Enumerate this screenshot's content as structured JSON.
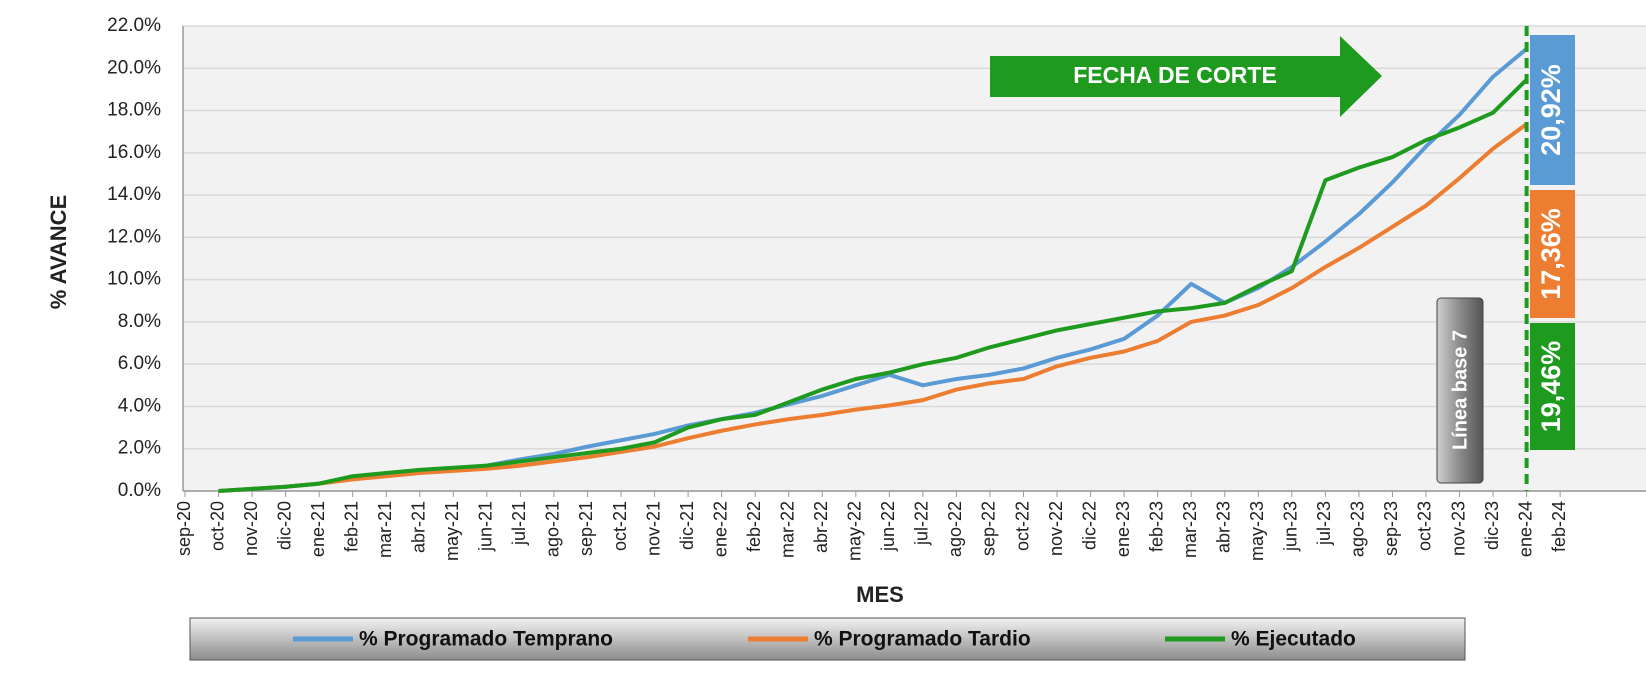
{
  "chart_data": {
    "type": "line",
    "y_label": "% AVANCE",
    "x_label": "MES",
    "annotations": [
      "FECHA DE CORTE",
      "Línea base 7"
    ],
    "categories": [
      "sep-20",
      "oct-20",
      "nov-20",
      "dic-20",
      "ene-21",
      "feb-21",
      "mar-21",
      "abr-21",
      "may-21",
      "jun-21",
      "jul-21",
      "ago-21",
      "sep-21",
      "oct-21",
      "nov-21",
      "dic-21",
      "ene-22",
      "feb-22",
      "mar-22",
      "abr-22",
      "may-22",
      "jun-22",
      "jul-22",
      "ago-22",
      "sep-22",
      "oct-22",
      "nov-22",
      "dic-22",
      "ene-23",
      "feb-23",
      "mar-23",
      "abr-23",
      "may-23",
      "jun-23",
      "jul-23",
      "ago-23",
      "sep-23",
      "oct-23",
      "nov-23",
      "dic-23",
      "ene-24",
      "feb-24"
    ],
    "series": [
      {
        "name": "% Programado Temprano",
        "color": "#5b9bd5",
        "end_label": "20,92%",
        "values": [
          null,
          0.0,
          0.1,
          0.2,
          0.35,
          0.6,
          0.75,
          0.9,
          1.05,
          1.2,
          1.5,
          1.75,
          2.1,
          2.4,
          2.7,
          3.1,
          3.4,
          3.7,
          4.1,
          4.5,
          5.0,
          5.5,
          5.0,
          5.3,
          5.5,
          5.8,
          6.3,
          6.7,
          7.2,
          8.3,
          9.8,
          8.9,
          9.6,
          10.6,
          11.8,
          13.1,
          14.6,
          16.3,
          17.8,
          19.6,
          20.92,
          null
        ]
      },
      {
        "name": "% Programado Tardio",
        "color": "#ed7d31",
        "end_label": "17,36%",
        "values": [
          null,
          0.0,
          0.1,
          0.2,
          0.35,
          0.55,
          0.7,
          0.85,
          0.95,
          1.05,
          1.2,
          1.4,
          1.6,
          1.85,
          2.1,
          2.5,
          2.85,
          3.15,
          3.4,
          3.6,
          3.85,
          4.05,
          4.3,
          4.8,
          5.1,
          5.3,
          5.9,
          6.3,
          6.6,
          7.1,
          8.0,
          8.3,
          8.8,
          9.6,
          10.6,
          11.5,
          12.5,
          13.5,
          14.8,
          16.2,
          17.36,
          null
        ]
      },
      {
        "name": "% Ejecutado",
        "color": "#1e9a1e",
        "end_label": "19,46%",
        "values": [
          null,
          0.0,
          0.1,
          0.2,
          0.35,
          0.7,
          0.85,
          1.0,
          1.1,
          1.2,
          1.4,
          1.6,
          1.8,
          2.0,
          2.3,
          3.0,
          3.4,
          3.6,
          4.2,
          4.8,
          5.3,
          5.6,
          6.0,
          6.3,
          6.8,
          7.2,
          7.6,
          7.9,
          8.2,
          8.5,
          8.65,
          8.9,
          9.7,
          10.4,
          14.7,
          15.3,
          15.8,
          16.6,
          17.2,
          17.9,
          19.46,
          null
        ]
      }
    ],
    "ylim": [
      0,
      22
    ],
    "yticks": [
      {
        "value": 0,
        "label": "0.0%"
      },
      {
        "value": 2,
        "label": "2.0%"
      },
      {
        "value": 4,
        "label": "4.0%"
      },
      {
        "value": 6,
        "label": "6.0%"
      },
      {
        "value": 8,
        "label": "8.0%"
      },
      {
        "value": 10,
        "label": "10.0%"
      },
      {
        "value": 12,
        "label": "12.0%"
      },
      {
        "value": 14,
        "label": "14.0%"
      },
      {
        "value": 16,
        "label": "16.0%"
      },
      {
        "value": 18,
        "label": "18.0%"
      },
      {
        "value": 20,
        "label": "20.0%"
      },
      {
        "value": 22,
        "label": "22.0%"
      }
    ],
    "grid": true,
    "legend": "bottom"
  }
}
